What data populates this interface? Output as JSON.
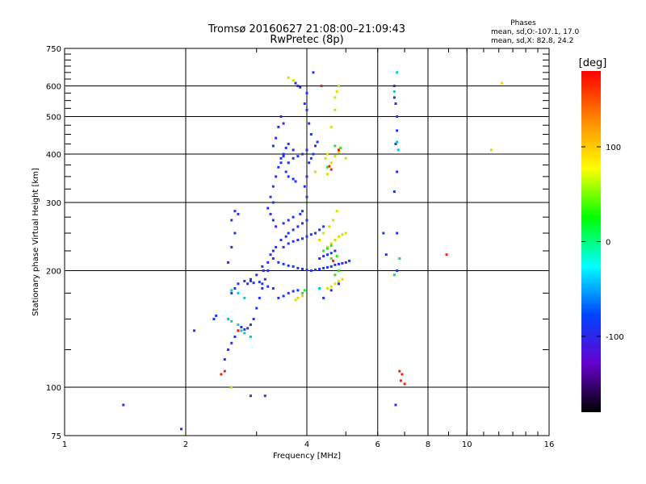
{
  "chart_data": {
    "type": "scatter",
    "title": "Tromsø 20160627 21:08:00–21:09:43",
    "subtitle": "RwPretec (8p)",
    "xlabel": "Frequency [MHz]",
    "ylabel": "Stationary phase Virtual Height [km]",
    "x_scale": "log",
    "y_scale": "log",
    "xlim": [
      1,
      16
    ],
    "ylim": [
      75,
      750
    ],
    "x_ticks": [
      1,
      2,
      4,
      6,
      8,
      10,
      16
    ],
    "y_ticks": [
      75,
      100,
      200,
      300,
      400,
      500,
      600,
      750
    ],
    "grid": true,
    "stats": {
      "heading": "Phases",
      "line1": "mean, sd,O:-107.1, 17.0",
      "line2": "mean, sd,X: 82.8, 24.2"
    },
    "colorbar": {
      "label": "[deg]",
      "min": -180,
      "max": 180,
      "ticks": [
        100,
        0,
        -100
      ],
      "colors": [
        "#ff0000",
        "#ff8800",
        "#ffff00",
        "#00ff00",
        "#00ffff",
        "#0044ff",
        "#6600cc",
        "#000000"
      ]
    },
    "series": [
      {
        "points": [
          [
            2.9,
            95
          ],
          [
            3.15,
            95
          ],
          [
            1.4,
            90
          ],
          [
            1.95,
            78
          ],
          [
            2.1,
            140
          ],
          [
            2.35,
            150
          ],
          [
            2.38,
            153
          ],
          [
            2.5,
            118
          ],
          [
            2.55,
            125
          ],
          [
            2.6,
            130
          ],
          [
            2.65,
            135
          ],
          [
            2.7,
            140
          ],
          [
            2.75,
            143
          ],
          [
            2.8,
            141
          ],
          [
            2.85,
            142
          ],
          [
            2.9,
            145
          ],
          [
            2.95,
            150
          ],
          [
            3.0,
            160
          ],
          [
            3.05,
            170
          ],
          [
            3.1,
            180
          ],
          [
            3.15,
            190
          ],
          [
            3.2,
            200
          ],
          [
            3.1,
            205
          ],
          [
            3.0,
            195
          ],
          [
            2.9,
            188
          ],
          [
            2.85,
            185
          ],
          [
            2.95,
            186
          ],
          [
            3.05,
            187
          ],
          [
            3.12,
            200
          ],
          [
            3.2,
            210
          ],
          [
            3.25,
            220
          ],
          [
            3.3,
            225
          ],
          [
            3.35,
            230
          ],
          [
            3.45,
            240
          ],
          [
            3.55,
            245
          ],
          [
            3.6,
            250
          ],
          [
            3.7,
            255
          ],
          [
            3.8,
            260
          ],
          [
            3.9,
            265
          ],
          [
            4.0,
            270
          ],
          [
            3.3,
            300
          ],
          [
            3.25,
            310
          ],
          [
            3.3,
            330
          ],
          [
            3.35,
            350
          ],
          [
            3.4,
            370
          ],
          [
            3.45,
            390
          ],
          [
            3.5,
            400
          ],
          [
            3.55,
            415
          ],
          [
            3.6,
            425
          ],
          [
            3.7,
            410
          ],
          [
            3.3,
            420
          ],
          [
            3.35,
            440
          ],
          [
            3.4,
            470
          ],
          [
            3.45,
            500
          ],
          [
            3.5,
            480
          ],
          [
            3.6,
            380
          ],
          [
            3.7,
            390
          ],
          [
            3.8,
            395
          ],
          [
            3.9,
            400
          ],
          [
            4.0,
            410
          ],
          [
            4.05,
            380
          ],
          [
            4.1,
            390
          ],
          [
            4.15,
            400
          ],
          [
            4.2,
            420
          ],
          [
            4.25,
            430
          ],
          [
            4.1,
            450
          ],
          [
            4.05,
            480
          ],
          [
            4.0,
            520
          ],
          [
            3.95,
            540
          ],
          [
            4.0,
            575
          ],
          [
            3.8,
            600
          ],
          [
            3.85,
            595
          ],
          [
            3.75,
            610
          ],
          [
            4.15,
            650
          ],
          [
            3.5,
            395
          ],
          [
            3.45,
            380
          ],
          [
            3.55,
            360
          ],
          [
            3.6,
            350
          ],
          [
            3.7,
            345
          ],
          [
            3.75,
            340
          ],
          [
            3.2,
            290
          ],
          [
            3.25,
            280
          ],
          [
            3.3,
            270
          ],
          [
            3.35,
            260
          ],
          [
            3.5,
            265
          ],
          [
            3.6,
            270
          ],
          [
            3.7,
            275
          ],
          [
            3.85,
            280
          ],
          [
            3.9,
            285
          ],
          [
            3.5,
            230
          ],
          [
            3.6,
            235
          ],
          [
            3.7,
            238
          ],
          [
            3.8,
            240
          ],
          [
            3.9,
            242
          ],
          [
            4.0,
            245
          ],
          [
            4.1,
            248
          ],
          [
            4.2,
            250
          ],
          [
            4.3,
            255
          ],
          [
            4.4,
            260
          ],
          [
            3.3,
            215
          ],
          [
            3.4,
            210
          ],
          [
            3.5,
            208
          ],
          [
            3.6,
            206
          ],
          [
            3.7,
            205
          ],
          [
            3.8,
            203
          ],
          [
            3.9,
            202
          ],
          [
            4.0,
            201
          ],
          [
            4.1,
            200
          ],
          [
            4.2,
            201
          ],
          [
            4.3,
            202
          ],
          [
            4.4,
            203
          ],
          [
            4.5,
            204
          ],
          [
            4.6,
            205
          ],
          [
            4.7,
            207
          ],
          [
            4.8,
            208
          ],
          [
            4.9,
            209
          ],
          [
            5.0,
            210
          ],
          [
            5.1,
            212
          ],
          [
            4.3,
            215
          ],
          [
            4.4,
            218
          ],
          [
            4.5,
            220
          ],
          [
            4.6,
            222
          ],
          [
            4.7,
            225
          ],
          [
            3.4,
            170
          ],
          [
            3.5,
            172
          ],
          [
            3.6,
            175
          ],
          [
            3.7,
            177
          ],
          [
            3.8,
            178
          ],
          [
            3.3,
            180
          ],
          [
            3.2,
            182
          ],
          [
            3.1,
            185
          ],
          [
            2.9,
            190
          ],
          [
            2.8,
            188
          ],
          [
            2.7,
            185
          ],
          [
            2.65,
            180
          ],
          [
            2.6,
            175
          ],
          [
            4.4,
            170
          ],
          [
            4.6,
            178
          ],
          [
            4.8,
            185
          ],
          [
            2.55,
            210
          ],
          [
            2.6,
            230
          ],
          [
            2.65,
            250
          ],
          [
            2.6,
            270
          ],
          [
            2.65,
            285
          ],
          [
            2.7,
            280
          ],
          [
            4.2,
            360
          ],
          [
            4.0,
            350
          ],
          [
            3.95,
            330
          ],
          [
            4.0,
            310
          ],
          [
            6.2,
            250
          ],
          [
            6.3,
            220
          ],
          [
            6.6,
            600
          ],
          [
            6.6,
            560
          ],
          [
            6.65,
            540
          ],
          [
            6.7,
            500
          ],
          [
            6.7,
            460
          ],
          [
            6.65,
            425
          ],
          [
            6.7,
            360
          ],
          [
            6.6,
            320
          ],
          [
            6.7,
            250
          ],
          [
            6.7,
            200
          ],
          [
            6.65,
            90
          ]
        ],
        "hue": "blue"
      },
      {
        "points": [
          [
            4.5,
            180
          ],
          [
            4.6,
            182
          ],
          [
            4.7,
            185
          ],
          [
            4.8,
            188
          ],
          [
            4.9,
            190
          ],
          [
            3.8,
            170
          ],
          [
            3.9,
            172
          ],
          [
            3.75,
            168
          ],
          [
            4.5,
            230
          ],
          [
            4.6,
            235
          ],
          [
            4.7,
            240
          ],
          [
            4.8,
            245
          ],
          [
            4.9,
            248
          ],
          [
            5.0,
            250
          ],
          [
            4.55,
            260
          ],
          [
            4.65,
            270
          ],
          [
            4.75,
            285
          ],
          [
            4.7,
            560
          ],
          [
            4.75,
            580
          ],
          [
            4.8,
            600
          ],
          [
            4.7,
            520
          ],
          [
            4.6,
            470
          ],
          [
            4.5,
            400
          ],
          [
            4.45,
            390
          ],
          [
            4.6,
            380
          ],
          [
            4.7,
            395
          ],
          [
            4.8,
            405
          ],
          [
            5.0,
            390
          ],
          [
            11.5,
            410
          ],
          [
            12.2,
            610
          ],
          [
            3.6,
            630
          ],
          [
            3.7,
            620
          ],
          [
            4.2,
            360
          ],
          [
            4.5,
            355
          ],
          [
            4.4,
            250
          ],
          [
            4.3,
            240
          ],
          [
            2.6,
            100
          ]
        ],
        "hue": "yellow"
      },
      {
        "points": [
          [
            4.5,
            370
          ],
          [
            4.7,
            420
          ],
          [
            4.85,
            415
          ],
          [
            4.4,
            225
          ],
          [
            4.5,
            228
          ],
          [
            4.6,
            232
          ],
          [
            3.9,
            175
          ],
          [
            3.95,
            178
          ],
          [
            4.7,
            195
          ],
          [
            4.8,
            200
          ],
          [
            4.6,
            215
          ],
          [
            4.75,
            218
          ]
        ],
        "hue": "green"
      },
      {
        "points": [
          [
            2.55,
            150
          ],
          [
            2.6,
            148
          ],
          [
            2.7,
            145
          ],
          [
            2.75,
            140
          ],
          [
            2.8,
            138
          ],
          [
            2.9,
            135
          ],
          [
            2.6,
            178
          ],
          [
            2.7,
            175
          ],
          [
            2.8,
            170
          ],
          [
            6.7,
            430
          ],
          [
            6.75,
            410
          ],
          [
            6.7,
            650
          ],
          [
            6.6,
            580
          ],
          [
            6.8,
            215
          ],
          [
            6.6,
            195
          ],
          [
            4.3,
            180
          ]
        ],
        "hue": "cyan"
      },
      {
        "points": [
          [
            2.5,
            110
          ],
          [
            2.45,
            108
          ],
          [
            2.7,
            140
          ],
          [
            6.8,
            110
          ],
          [
            6.9,
            108
          ],
          [
            7.0,
            102
          ],
          [
            6.85,
            104
          ],
          [
            8.9,
            220
          ],
          [
            4.6,
            365
          ],
          [
            4.55,
            372
          ],
          [
            4.8,
            410
          ],
          [
            4.65,
            212
          ],
          [
            4.35,
            600
          ]
        ],
        "hue": "red"
      }
    ]
  }
}
